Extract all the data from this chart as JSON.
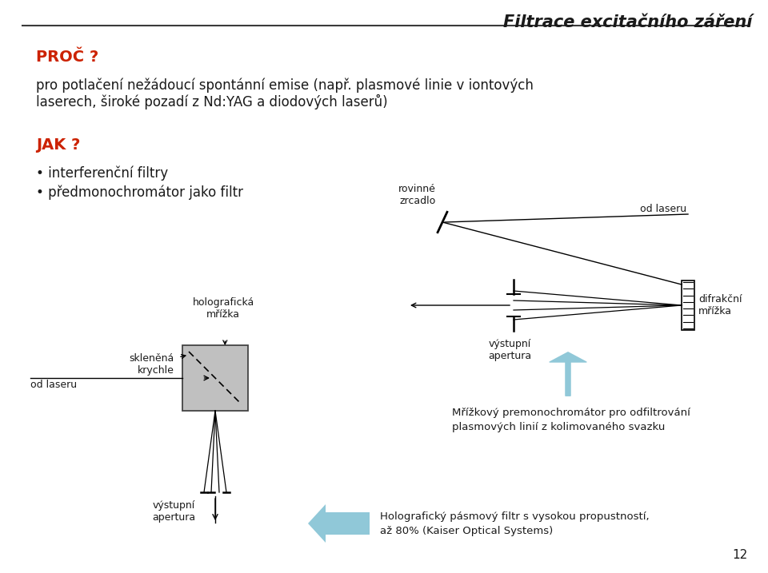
{
  "title": "Filtrace excitačního záření",
  "background_color": "#ffffff",
  "header_line_color": "#3a3a3a",
  "proc_label": "PROČ ?",
  "proc_color": "#cc2200",
  "jak_label": "JAK ?",
  "jak_color": "#cc2200",
  "body_text1": "pro potlačení nežádoucí spontánní emise (např. plasmové linie v iontových",
  "body_text2": "laserech, široké pozadí z Nd:YAG a diodových laserů)",
  "bullet1": "interferenční filtry",
  "bullet2": "předmonochromátor jako filtr",
  "page_number": "12",
  "rovinne_zrcadlo": "rovinné\nzrcadlo",
  "od_laseru_top": "od laseru",
  "difrakci_mrizka": "difrakční\nmřížka",
  "vystupni_apertura_right": "výstupní\napertura",
  "holograficka_mrizka": "holografická\nmřížka",
  "sklenena_krychle": "skleněná\nkrychle",
  "od_laseru_left": "od laseru",
  "vystupni_apertura_bottom": "výstupní\napertura",
  "caption1_line1": "Mřížkový premonochromátor pro odfiltrování",
  "caption1_line2": "plasmových linií z kolimovaného svazku",
  "caption2_line1": "Holografický pásmový filtr s vysokou propustností,",
  "caption2_line2": "až 80% (Kaiser Optical Systems)",
  "light_blue": "#90c8d8",
  "gray_cube": "#c0c0c0"
}
